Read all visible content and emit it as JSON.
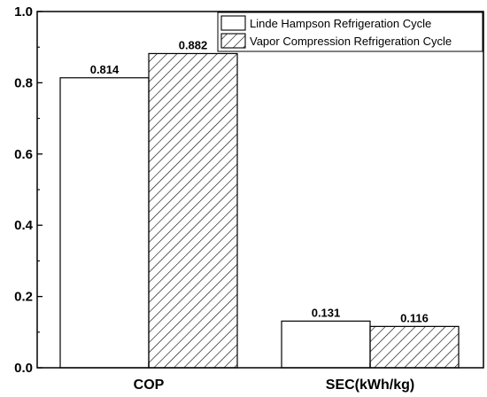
{
  "chart_data": {
    "type": "bar",
    "categories": [
      "COP",
      "SEC(kWh/kg)"
    ],
    "series": [
      {
        "name": "Linde Hampson Refrigeration Cycle",
        "values": [
          0.814,
          0.131
        ],
        "pattern": "none",
        "fill": "#ffffff"
      },
      {
        "name": "Vapor Compression Refrigeration Cycle",
        "values": [
          0.882,
          0.116
        ],
        "pattern": "diagonal-hatch",
        "fill": "#ffffff"
      }
    ],
    "data_labels": [
      [
        "0.814",
        "0.131"
      ],
      [
        "0.882",
        "0.116"
      ]
    ],
    "ylim": [
      0,
      1.0
    ],
    "yticks": [
      "0.0",
      "0.2",
      "0.4",
      "0.6",
      "0.8",
      "1.0"
    ],
    "grid": false,
    "legend_position": "top-right",
    "title": "",
    "xlabel": "",
    "ylabel": ""
  }
}
